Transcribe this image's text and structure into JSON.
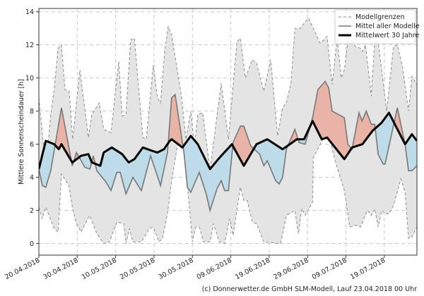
{
  "chart_data": {
    "type": "line",
    "title": "",
    "xlabel": "",
    "ylabel": "Mittlere Sonnenscheindauer [h]",
    "x_unit": "days since 20.04.2018",
    "xlim": [
      0,
      98.5
    ],
    "ylim": [
      -0.7,
      14.2
    ],
    "grid": true,
    "legend_position": "top-right",
    "x_ticks": [
      {
        "day": 0,
        "label": "20.04.2018"
      },
      {
        "day": 10,
        "label": "30.04.2018"
      },
      {
        "day": 20,
        "label": "10.05.2018"
      },
      {
        "day": 30,
        "label": "20.05.2018"
      },
      {
        "day": 40,
        "label": "30.05.2018"
      },
      {
        "day": 50,
        "label": "09.06.2018"
      },
      {
        "day": 60,
        "label": "19.06.2018"
      },
      {
        "day": 70,
        "label": "29.06.2018"
      },
      {
        "day": 80,
        "label": "09.07.2018"
      },
      {
        "day": 90,
        "label": "19.07.2018"
      }
    ],
    "y_ticks": [
      {
        "value": 0,
        "label": "0"
      },
      {
        "value": 2,
        "label": "2"
      },
      {
        "value": 4,
        "label": "4"
      },
      {
        "value": 6,
        "label": "6"
      },
      {
        "value": 8,
        "label": "8"
      },
      {
        "value": 10,
        "label": "10"
      },
      {
        "value": 12,
        "label": "12"
      },
      {
        "value": 14,
        "label": "14"
      }
    ],
    "legend": [
      {
        "key": "bounds",
        "label": "Modellgrenzen"
      },
      {
        "key": "mean",
        "label": "Mittel aller Modelle"
      },
      {
        "key": "climate",
        "label": "Mittelwert 30 Jahre"
      }
    ],
    "colors": {
      "band": "#e4e4e4",
      "bounds": "#8c8c8c",
      "mean": "#777777",
      "climate": "#000000",
      "above": "#e9b4a7",
      "below": "#bddbe8"
    },
    "series": {
      "upper": [
        [
          0,
          8.8
        ],
        [
          1.8,
          4.5
        ],
        [
          3.1,
          7.8
        ],
        [
          4,
          9.3
        ],
        [
          5,
          11.8
        ],
        [
          5.9,
          12.0
        ],
        [
          6.8,
          9.3
        ],
        [
          7.9,
          9.2
        ],
        [
          8.8,
          6.3
        ],
        [
          10.7,
          10.5
        ],
        [
          12.9,
          6.4
        ],
        [
          13.8,
          7.8
        ],
        [
          15.7,
          8.5
        ],
        [
          16.9,
          6.9
        ],
        [
          18.8,
          6.7
        ],
        [
          20.8,
          11.0
        ],
        [
          21.7,
          7.7
        ],
        [
          22.7,
          7.8
        ],
        [
          23.9,
          12.3
        ],
        [
          24.9,
          12.4
        ],
        [
          27.1,
          6.4
        ],
        [
          28,
          6.3
        ],
        [
          29.8,
          10.8
        ],
        [
          30.9,
          8.8
        ],
        [
          31.7,
          8.5
        ],
        [
          32.8,
          11.7
        ],
        [
          33.7,
          13.1
        ],
        [
          34.6,
          12.6
        ],
        [
          37.2,
          8.8
        ],
        [
          38.3,
          6.3
        ],
        [
          39.6,
          8.0
        ],
        [
          40.5,
          5.8
        ],
        [
          41.4,
          7.8
        ],
        [
          42.7,
          7.9
        ],
        [
          44.6,
          4.4
        ],
        [
          47.5,
          9.7
        ],
        [
          49.4,
          6.3
        ],
        [
          51.6,
          12.2
        ],
        [
          52.5,
          12.4
        ],
        [
          53.8,
          10.0
        ],
        [
          55.6,
          11.1
        ],
        [
          56.7,
          10.9
        ],
        [
          58.6,
          9.2
        ],
        [
          60.4,
          11.1
        ],
        [
          62.2,
          6.5
        ],
        [
          63.5,
          8.2
        ],
        [
          64.5,
          8.5
        ],
        [
          65.7,
          9.7
        ],
        [
          66.7,
          13.0
        ],
        [
          68.1,
          13.0
        ],
        [
          69.4,
          13.4
        ],
        [
          70.3,
          13.6
        ],
        [
          73.3,
          12.1
        ],
        [
          75.1,
          12.5
        ],
        [
          76.4,
          9.6
        ],
        [
          77.7,
          12.4
        ],
        [
          78.8,
          10.0
        ],
        [
          79.6,
          10.5
        ],
        [
          80.7,
          12.6
        ],
        [
          82.5,
          11.9
        ],
        [
          83.8,
          11.8
        ],
        [
          84.3,
          11.6
        ],
        [
          85.1,
          12.0
        ],
        [
          86.6,
          8.9
        ],
        [
          87.5,
          12.3
        ],
        [
          88.4,
          12.2
        ],
        [
          90.6,
          8.0
        ],
        [
          92.4,
          11.9
        ],
        [
          93.4,
          12.0
        ],
        [
          94.8,
          10.6
        ],
        [
          96.3,
          8.0
        ],
        [
          97.2,
          10.1
        ],
        [
          98.5,
          9.6
        ]
      ],
      "lower": [
        [
          0,
          2.2
        ],
        [
          0.9,
          1.5
        ],
        [
          1.8,
          2.2
        ],
        [
          4,
          0.9
        ],
        [
          5,
          0.7
        ],
        [
          5.9,
          4.2
        ],
        [
          7.8,
          3.5
        ],
        [
          8.8,
          2.1
        ],
        [
          9.8,
          1.2
        ],
        [
          11,
          0.7
        ],
        [
          13.2,
          1.7
        ],
        [
          15.1,
          0.6
        ],
        [
          16.9,
          0.0
        ],
        [
          18.4,
          0.1
        ],
        [
          20.3,
          1.3
        ],
        [
          22.1,
          1.2
        ],
        [
          22.7,
          0.0
        ],
        [
          23.6,
          0.9
        ],
        [
          24.5,
          0.1
        ],
        [
          26.7,
          0.1
        ],
        [
          28.8,
          0.9
        ],
        [
          29.8,
          1.0
        ],
        [
          31.3,
          0.1
        ],
        [
          32.2,
          0.3
        ],
        [
          33.5,
          1.8
        ],
        [
          34.6,
          3.8
        ],
        [
          36.8,
          6.9
        ],
        [
          38.3,
          4.6
        ],
        [
          40,
          0.1
        ],
        [
          40.9,
          1.0
        ],
        [
          41.8,
          1.0
        ],
        [
          42.9,
          0.1
        ],
        [
          44.6,
          0.1
        ],
        [
          45.5,
          1.2
        ],
        [
          47,
          0.1
        ],
        [
          48.4,
          0.0
        ],
        [
          49.7,
          1.5
        ],
        [
          50.6,
          0.5
        ],
        [
          52.5,
          3.4
        ],
        [
          53.4,
          2.6
        ],
        [
          54.3,
          2.6
        ],
        [
          55.6,
          1.3
        ],
        [
          56.7,
          1.2
        ],
        [
          58.6,
          0.1
        ],
        [
          63,
          0.0
        ],
        [
          64.5,
          1.7
        ],
        [
          66.7,
          2.0
        ],
        [
          67.6,
          0.6
        ],
        [
          68.5,
          2.1
        ],
        [
          69.4,
          1.7
        ],
        [
          71.3,
          2.5
        ],
        [
          71.5,
          5.2
        ],
        [
          72.7,
          5.7
        ],
        [
          74.6,
          6.6
        ],
        [
          75.5,
          7.2
        ],
        [
          76.4,
          5.7
        ],
        [
          77.7,
          4.6
        ],
        [
          79.6,
          3.2
        ],
        [
          81,
          1.0
        ],
        [
          82.5,
          1.1
        ],
        [
          83.8,
          1.0
        ],
        [
          85.6,
          2.0
        ],
        [
          86.6,
          1.7
        ],
        [
          87.5,
          2.1
        ],
        [
          88.4,
          1.0
        ],
        [
          89.3,
          2.0
        ],
        [
          90.2,
          1.8
        ],
        [
          91.2,
          1.8
        ],
        [
          92.4,
          2.3
        ],
        [
          94.3,
          3.9
        ],
        [
          95.4,
          3.1
        ],
        [
          96.3,
          0.3
        ],
        [
          97.2,
          0.4
        ],
        [
          98.5,
          1.0
        ]
      ],
      "mean": [
        [
          0,
          4.5
        ],
        [
          0.9,
          3.5
        ],
        [
          1.8,
          3.4
        ],
        [
          3.1,
          4.4
        ],
        [
          5.9,
          8.2
        ],
        [
          8.7,
          4.7
        ],
        [
          9.8,
          5.5
        ],
        [
          12,
          4.6
        ],
        [
          13.3,
          4.5
        ],
        [
          14.2,
          5.3
        ],
        [
          15.1,
          4.4
        ],
        [
          17.5,
          3.7
        ],
        [
          18.8,
          3.2
        ],
        [
          20.3,
          4.3
        ],
        [
          21.2,
          4.3
        ],
        [
          22.7,
          3.0
        ],
        [
          24.5,
          4.0
        ],
        [
          26.7,
          3.2
        ],
        [
          29.1,
          5.3
        ],
        [
          31.7,
          3.5
        ],
        [
          33.5,
          5.5
        ],
        [
          34.6,
          8.8
        ],
        [
          35.5,
          9.0
        ],
        [
          37.8,
          5.5
        ],
        [
          38.7,
          3.4
        ],
        [
          39.6,
          3.1
        ],
        [
          41.8,
          4.3
        ],
        [
          43.6,
          3.0
        ],
        [
          44.6,
          2.0
        ],
        [
          46.4,
          3.3
        ],
        [
          47.5,
          3.8
        ],
        [
          48.4,
          3.2
        ],
        [
          49.4,
          3.2
        ],
        [
          50.6,
          6.1
        ],
        [
          52.5,
          7.1
        ],
        [
          53.4,
          7.1
        ],
        [
          55.2,
          5.9
        ],
        [
          57.5,
          5.4
        ],
        [
          58.6,
          4.7
        ],
        [
          59.5,
          5.0
        ],
        [
          61.7,
          3.8
        ],
        [
          62.6,
          3.6
        ],
        [
          63.5,
          4.0
        ],
        [
          64.5,
          5.7
        ],
        [
          66.7,
          6.9
        ],
        [
          67.8,
          6.1
        ],
        [
          69.4,
          6.0
        ],
        [
          71.3,
          7.6
        ],
        [
          72.7,
          9.3
        ],
        [
          74.6,
          9.8
        ],
        [
          75.5,
          9.4
        ],
        [
          76.4,
          8.0
        ],
        [
          79.6,
          7.6
        ],
        [
          80.5,
          6.0
        ],
        [
          81.6,
          5.7
        ],
        [
          83.4,
          7.9
        ],
        [
          84.2,
          7.4
        ],
        [
          85.3,
          8.0
        ],
        [
          86.6,
          7.2
        ],
        [
          87.5,
          7.2
        ],
        [
          88.4,
          5.4
        ],
        [
          89.7,
          4.8
        ],
        [
          90.2,
          4.8
        ],
        [
          93.4,
          8.2
        ],
        [
          95.4,
          6.0
        ],
        [
          96.3,
          4.4
        ],
        [
          97.2,
          4.4
        ],
        [
          98.5,
          4.7
        ]
      ],
      "climate": [
        [
          0,
          4.5
        ],
        [
          1.8,
          6.2
        ],
        [
          4,
          6.0
        ],
        [
          5.2,
          5.7
        ],
        [
          5.9,
          6.0
        ],
        [
          8.7,
          4.9
        ],
        [
          11,
          5.3
        ],
        [
          12.9,
          5.4
        ],
        [
          13.8,
          4.9
        ],
        [
          16,
          4.7
        ],
        [
          16.9,
          5.5
        ],
        [
          19,
          5.8
        ],
        [
          21.7,
          5.4
        ],
        [
          23.4,
          4.9
        ],
        [
          24.9,
          5.1
        ],
        [
          27.1,
          5.8
        ],
        [
          29.5,
          5.6
        ],
        [
          30.9,
          5.5
        ],
        [
          32.6,
          5.7
        ],
        [
          34.1,
          6.2
        ],
        [
          34.6,
          6.3
        ],
        [
          37.4,
          5.8
        ],
        [
          39.6,
          6.5
        ],
        [
          41.4,
          6.0
        ],
        [
          44.6,
          4.5
        ],
        [
          46.4,
          5.0
        ],
        [
          47.5,
          5.3
        ],
        [
          50.3,
          6.0
        ],
        [
          53.4,
          4.7
        ],
        [
          56.7,
          6.0
        ],
        [
          59.5,
          6.3
        ],
        [
          63.5,
          5.7
        ],
        [
          65.4,
          6.0
        ],
        [
          67.2,
          6.3
        ],
        [
          69.1,
          6.3
        ],
        [
          71.3,
          7.4
        ],
        [
          73.7,
          6.3
        ],
        [
          75.1,
          6.4
        ],
        [
          79.6,
          5.1
        ],
        [
          81.6,
          5.8
        ],
        [
          84.3,
          6.0
        ],
        [
          86.9,
          6.8
        ],
        [
          89.3,
          7.3
        ],
        [
          91.2,
          7.9
        ],
        [
          95.4,
          6.0
        ],
        [
          97.2,
          6.6
        ],
        [
          98.5,
          6.2
        ]
      ]
    }
  },
  "footer": {
    "credit": "(c) Donnerwetter.de GmbH SLM-Modell, Lauf 23.04.2018 00 Uhr"
  }
}
